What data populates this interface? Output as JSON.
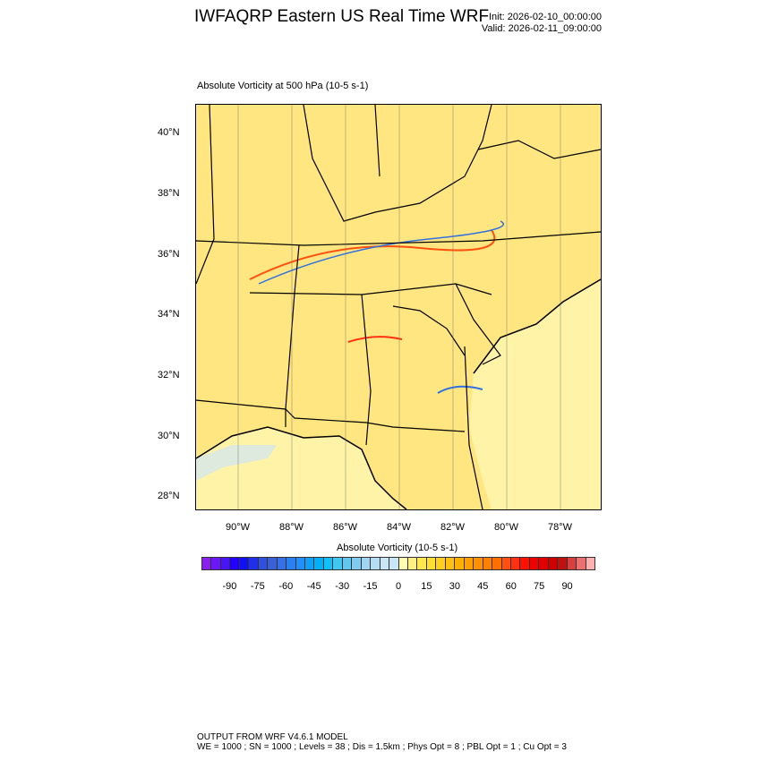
{
  "header": {
    "title": "IWFAQRP Eastern US Real Time WRF",
    "init": "Init: 2026-02-10_00:00:00",
    "valid": "Valid: 2026-02-11_09:00:00"
  },
  "plot": {
    "subtitle": "Absolute Vorticity at 500 hPa   (10-5 s-1)",
    "lat_labels": [
      "40°N",
      "38°N",
      "36°N",
      "34°N",
      "32°N",
      "30°N",
      "28°N"
    ],
    "lon_labels": [
      "90°W",
      "88°W",
      "86°W",
      "84°W",
      "82°W",
      "80°W",
      "78°W"
    ],
    "background_color": "#ffe680"
  },
  "colorbar": {
    "title": "Absolute Vorticity  (10-5 s-1)",
    "labels": [
      "-90",
      "-75",
      "-60",
      "-45",
      "-30",
      "-15",
      "0",
      "15",
      "30",
      "45",
      "60",
      "75",
      "90"
    ],
    "range": [
      -105,
      105
    ],
    "interval": 5,
    "colors": [
      "#8a1ff0",
      "#6a19f5",
      "#4a14f8",
      "#2200ff",
      "#1010f5",
      "#2030e8",
      "#3050e0",
      "#3a60d8",
      "#3570e8",
      "#2a80f0",
      "#2090f8",
      "#10a0f8",
      "#00b0f8",
      "#10c0f8",
      "#40c8f0",
      "#60c8f0",
      "#80ccf0",
      "#a0d4f0",
      "#b4dcf2",
      "#c8e6f5",
      "#c8e6f5",
      "#fffcb0",
      "#fff080",
      "#ffe850",
      "#ffe030",
      "#ffd020",
      "#ffc010",
      "#ffb000",
      "#ffa000",
      "#ff9000",
      "#ff8000",
      "#ff7000",
      "#ff5010",
      "#ff3010",
      "#ff1000",
      "#f00000",
      "#e00000",
      "#d00000",
      "#c01010",
      "#d84040",
      "#ec7070",
      "#ffb0b0"
    ]
  },
  "footer": {
    "line1": "OUTPUT FROM WRF V4.6.1 MODEL",
    "line2": "WE = 1000 ; SN = 1000 ; Levels = 38 ; Dis = 1.5km ; Phys Opt = 8 ; PBL Opt = 1 ; Cu Opt = 3"
  }
}
